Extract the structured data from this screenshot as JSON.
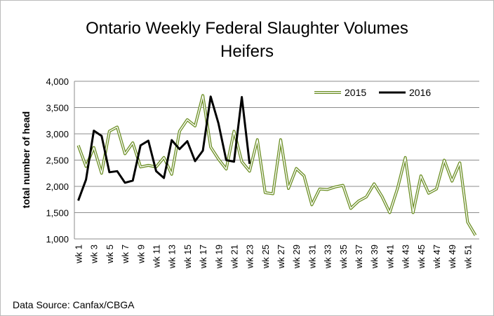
{
  "chart_data": {
    "type": "line",
    "title": "Ontario Weekly Federal Slaughter Volumes",
    "subtitle": "Heifers",
    "y_label": "total number of head",
    "source": "Data Source: Canfax/CBGA",
    "categories": [
      "wk 1",
      null,
      "wk 3",
      null,
      "wk 5",
      null,
      "wk 7",
      null,
      "wk 9",
      null,
      "wk 11",
      null,
      "wk 13",
      null,
      "wk 15",
      null,
      "wk 17",
      null,
      "wk 19",
      null,
      "wk 21",
      null,
      "wk 23",
      null,
      "wk 25",
      null,
      "wk 27",
      null,
      "wk 29",
      null,
      "wk 31",
      null,
      "wk 33",
      null,
      "wk 35",
      null,
      "wk 37",
      null,
      "wk 39",
      null,
      "wk 41",
      null,
      "wk 43",
      null,
      "wk 45",
      null,
      "wk 47",
      null,
      "wk 49",
      null,
      "wk 51",
      null
    ],
    "series": [
      {
        "name": "2015",
        "color": "#6b8e23",
        "style": "double",
        "values": [
          2780,
          2380,
          2740,
          2250,
          3050,
          3130,
          2620,
          2830,
          2370,
          2400,
          2370,
          2550,
          2230,
          3050,
          3270,
          3150,
          3730,
          2750,
          2520,
          2330,
          3050,
          2470,
          2290,
          2890,
          1880,
          1860,
          2890,
          1960,
          2340,
          2200,
          1650,
          1950,
          1940,
          1990,
          2020,
          1580,
          1720,
          1800,
          2050,
          1810,
          1500,
          1960,
          2550,
          1500,
          2200,
          1870,
          1950,
          2500,
          2100,
          2450,
          1320,
          1070
        ]
      },
      {
        "name": "2016",
        "color": "#000000",
        "style": "solid",
        "values": [
          1730,
          2130,
          3060,
          2960,
          2270,
          2290,
          2070,
          2110,
          2780,
          2870,
          2290,
          2160,
          2880,
          2710,
          2860,
          2480,
          2680,
          3710,
          3200,
          2500,
          2470,
          3700,
          2430,
          null,
          null,
          null,
          null,
          null,
          null,
          null,
          null,
          null,
          null,
          null,
          null,
          null,
          null,
          null,
          null,
          null,
          null,
          null,
          null,
          null,
          null,
          null,
          null,
          null,
          null,
          null,
          null,
          null
        ]
      }
    ],
    "ylim": [
      1000,
      4000
    ],
    "yticks": [
      {
        "value": 1000,
        "label": "1,000"
      },
      {
        "value": 1500,
        "label": "1,500"
      },
      {
        "value": 2000,
        "label": "2,000"
      },
      {
        "value": 2500,
        "label": "2,500"
      },
      {
        "value": 3000,
        "label": "3,000"
      },
      {
        "value": 3500,
        "label": "3,500"
      },
      {
        "value": 4000,
        "label": "4,000"
      }
    ],
    "grid": true,
    "legend": "upper right"
  }
}
